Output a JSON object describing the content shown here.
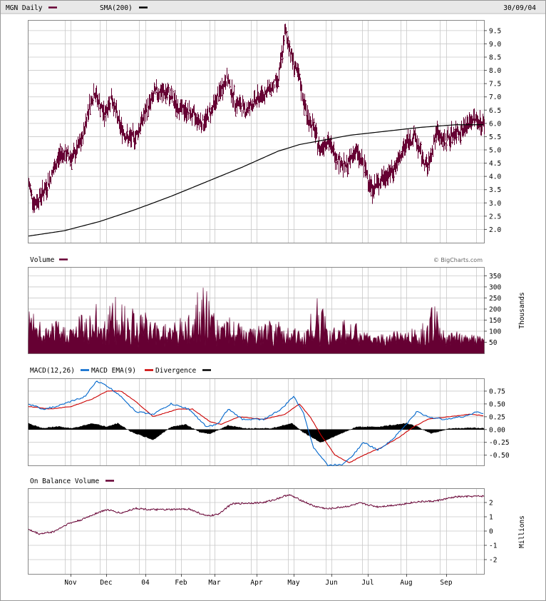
{
  "header": {
    "symbol_label": "MGN Daily",
    "sma_label": "SMA(200)",
    "date": "30/09/04"
  },
  "credit": "© BigCharts.com",
  "colors": {
    "price": "#660033",
    "sma": "#000000",
    "volume": "#660033",
    "macd": "#0066cc",
    "ema": "#cc0000",
    "divergence": "#000000",
    "obv": "#660033",
    "header_bg": "#e8e8e8",
    "grid": "#c8c8c8"
  },
  "x_labels": [
    "Nov",
    "Dec",
    "04",
    "Feb",
    "Mar",
    "Apr",
    "May",
    "Jun",
    "Jul",
    "Aug",
    "Sep"
  ],
  "chart_data": [
    {
      "type": "ohlc",
      "title": "MGN Daily",
      "series": [
        {
          "name": "MGN Daily"
        },
        {
          "name": "SMA(200)"
        }
      ],
      "ylim": [
        1.5,
        9.9
      ],
      "y_ticks": [
        "9.5",
        "9.0",
        "8.5",
        "8.0",
        "7.5",
        "7.0",
        "6.5",
        "6.0",
        "5.5",
        "5.0",
        "4.5",
        "4.0",
        "3.5",
        "3.0",
        "2.5",
        "2.0"
      ],
      "price_keypoints": [
        [
          0,
          3.7
        ],
        [
          8,
          2.95
        ],
        [
          25,
          3.6
        ],
        [
          45,
          4.9
        ],
        [
          62,
          4.7
        ],
        [
          75,
          5.4
        ],
        [
          84,
          6.6
        ],
        [
          92,
          7.2
        ],
        [
          106,
          6.3
        ],
        [
          116,
          7.0
        ],
        [
          128,
          5.9
        ],
        [
          140,
          5.4
        ],
        [
          150,
          5.5
        ],
        [
          162,
          6.3
        ],
        [
          178,
          7.2
        ],
        [
          196,
          7.1
        ],
        [
          210,
          6.6
        ],
        [
          225,
          6.4
        ],
        [
          245,
          6.0
        ],
        [
          258,
          6.6
        ],
        [
          278,
          7.7
        ],
        [
          290,
          6.8
        ],
        [
          305,
          6.5
        ],
        [
          320,
          6.9
        ],
        [
          338,
          7.3
        ],
        [
          350,
          7.6
        ],
        [
          360,
          9.5
        ],
        [
          370,
          8.4
        ],
        [
          380,
          7.6
        ],
        [
          390,
          6.3
        ],
        [
          400,
          5.8
        ],
        [
          408,
          5.0
        ],
        [
          418,
          5.4
        ],
        [
          430,
          4.8
        ],
        [
          445,
          4.3
        ],
        [
          458,
          5.0
        ],
        [
          470,
          4.4
        ],
        [
          482,
          3.5
        ],
        [
          495,
          3.9
        ],
        [
          510,
          4.2
        ],
        [
          520,
          4.6
        ],
        [
          530,
          5.3
        ],
        [
          542,
          5.5
        ],
        [
          550,
          4.8
        ],
        [
          560,
          4.3
        ],
        [
          572,
          5.7
        ],
        [
          582,
          5.3
        ],
        [
          595,
          5.6
        ],
        [
          610,
          5.8
        ],
        [
          625,
          6.2
        ],
        [
          640,
          5.9
        ],
        [
          655,
          6.0
        ],
        [
          668,
          6.1
        ],
        [
          676,
          6.5
        ]
      ],
      "sma_keypoints": [
        [
          0,
          1.75
        ],
        [
          50,
          1.95
        ],
        [
          100,
          2.3
        ],
        [
          150,
          2.75
        ],
        [
          200,
          3.25
        ],
        [
          250,
          3.8
        ],
        [
          300,
          4.35
        ],
        [
          350,
          4.95
        ],
        [
          380,
          5.2
        ],
        [
          410,
          5.35
        ],
        [
          450,
          5.55
        ],
        [
          500,
          5.7
        ],
        [
          550,
          5.85
        ],
        [
          600,
          5.95
        ],
        [
          676,
          5.95
        ]
      ]
    },
    {
      "type": "bar",
      "title": "Volume",
      "unit": "Thousands",
      "ylim": [
        0,
        390
      ],
      "y_ticks": [
        "350",
        "300",
        "250",
        "200",
        "150",
        "100",
        "50"
      ],
      "spike_keypoints": [
        [
          2,
          210
        ],
        [
          22,
          120
        ],
        [
          40,
          150
        ],
        [
          58,
          130
        ],
        [
          80,
          220
        ],
        [
          100,
          230
        ],
        [
          122,
          260
        ],
        [
          135,
          290
        ],
        [
          150,
          250
        ],
        [
          175,
          160
        ],
        [
          210,
          150
        ],
        [
          245,
          320
        ],
        [
          270,
          170
        ],
        [
          288,
          160
        ],
        [
          310,
          110
        ],
        [
          340,
          150
        ],
        [
          366,
          170
        ],
        [
          385,
          80
        ],
        [
          405,
          270
        ],
        [
          420,
          160
        ],
        [
          455,
          150
        ],
        [
          480,
          80
        ],
        [
          500,
          90
        ],
        [
          528,
          110
        ],
        [
          548,
          120
        ],
        [
          570,
          230
        ],
        [
          585,
          80
        ],
        [
          600,
          110
        ],
        [
          640,
          70
        ],
        [
          676,
          120
        ]
      ]
    },
    {
      "type": "line",
      "title": "MACD(12,26)",
      "series": [
        {
          "name": "MACD EMA(9)"
        },
        {
          "name": "Divergence"
        }
      ],
      "ylim": [
        -0.7,
        1.0
      ],
      "y_ticks": [
        "0.75",
        "0.50",
        "0.25",
        "0.00",
        "-0.25",
        "-0.50"
      ],
      "macd_keypoints": [
        [
          0,
          0.5
        ],
        [
          20,
          0.4
        ],
        [
          40,
          0.45
        ],
        [
          60,
          0.55
        ],
        [
          80,
          0.65
        ],
        [
          95,
          0.95
        ],
        [
          110,
          0.85
        ],
        [
          130,
          0.65
        ],
        [
          150,
          0.35
        ],
        [
          175,
          0.3
        ],
        [
          200,
          0.5
        ],
        [
          225,
          0.4
        ],
        [
          250,
          0.05
        ],
        [
          265,
          0.1
        ],
        [
          280,
          0.4
        ],
        [
          300,
          0.2
        ],
        [
          330,
          0.2
        ],
        [
          355,
          0.4
        ],
        [
          372,
          0.65
        ],
        [
          385,
          0.35
        ],
        [
          400,
          -0.35
        ],
        [
          420,
          -0.7
        ],
        [
          440,
          -0.68
        ],
        [
          455,
          -0.5
        ],
        [
          470,
          -0.25
        ],
        [
          490,
          -0.4
        ],
        [
          510,
          -0.2
        ],
        [
          530,
          0.1
        ],
        [
          545,
          0.35
        ],
        [
          560,
          0.25
        ],
        [
          580,
          0.2
        ],
        [
          610,
          0.25
        ],
        [
          630,
          0.35
        ],
        [
          650,
          0.25
        ],
        [
          676,
          0.2
        ]
      ],
      "ema_keypoints": [
        [
          0,
          0.45
        ],
        [
          30,
          0.4
        ],
        [
          60,
          0.45
        ],
        [
          90,
          0.6
        ],
        [
          110,
          0.75
        ],
        [
          130,
          0.75
        ],
        [
          150,
          0.55
        ],
        [
          175,
          0.25
        ],
        [
          210,
          0.4
        ],
        [
          230,
          0.4
        ],
        [
          255,
          0.15
        ],
        [
          270,
          0.1
        ],
        [
          295,
          0.25
        ],
        [
          330,
          0.2
        ],
        [
          360,
          0.3
        ],
        [
          380,
          0.5
        ],
        [
          395,
          0.25
        ],
        [
          410,
          -0.1
        ],
        [
          430,
          -0.5
        ],
        [
          450,
          -0.65
        ],
        [
          470,
          -0.5
        ],
        [
          495,
          -0.35
        ],
        [
          520,
          -0.15
        ],
        [
          540,
          0.05
        ],
        [
          560,
          0.2
        ],
        [
          590,
          0.25
        ],
        [
          620,
          0.3
        ],
        [
          650,
          0.25
        ],
        [
          676,
          0.2
        ]
      ],
      "div_keypoints": [
        [
          0,
          0.12
        ],
        [
          20,
          0.02
        ],
        [
          40,
          0.06
        ],
        [
          60,
          0.02
        ],
        [
          90,
          0.12
        ],
        [
          110,
          0.05
        ],
        [
          125,
          0.12
        ],
        [
          145,
          -0.05
        ],
        [
          175,
          -0.2
        ],
        [
          200,
          0.05
        ],
        [
          220,
          0.1
        ],
        [
          240,
          -0.05
        ],
        [
          255,
          -0.08
        ],
        [
          280,
          0.08
        ],
        [
          305,
          0.02
        ],
        [
          340,
          0.02
        ],
        [
          370,
          0.12
        ],
        [
          385,
          -0.05
        ],
        [
          410,
          -0.25
        ],
        [
          435,
          -0.1
        ],
        [
          460,
          0.05
        ],
        [
          490,
          0.05
        ],
        [
          530,
          0.12
        ],
        [
          545,
          0.06
        ],
        [
          565,
          -0.08
        ],
        [
          590,
          0.02
        ],
        [
          630,
          0.03
        ],
        [
          676,
          0.0
        ]
      ]
    },
    {
      "type": "line",
      "title": "On Balance Volume",
      "unit": "Millions",
      "ylim": [
        -3,
        3
      ],
      "y_ticks": [
        "2",
        "1",
        "0",
        "-1",
        "-2"
      ],
      "obv_keypoints": [
        [
          0,
          0.1
        ],
        [
          15,
          -0.2
        ],
        [
          35,
          -0.05
        ],
        [
          55,
          0.5
        ],
        [
          75,
          0.8
        ],
        [
          95,
          1.25
        ],
        [
          110,
          1.5
        ],
        [
          130,
          1.25
        ],
        [
          150,
          1.6
        ],
        [
          170,
          1.5
        ],
        [
          200,
          1.5
        ],
        [
          225,
          1.55
        ],
        [
          250,
          1.05
        ],
        [
          265,
          1.15
        ],
        [
          285,
          1.9
        ],
        [
          305,
          1.95
        ],
        [
          330,
          2.0
        ],
        [
          345,
          2.2
        ],
        [
          365,
          2.55
        ],
        [
          385,
          2.1
        ],
        [
          400,
          1.75
        ],
        [
          420,
          1.55
        ],
        [
          450,
          1.75
        ],
        [
          465,
          1.95
        ],
        [
          490,
          1.7
        ],
        [
          520,
          1.85
        ],
        [
          545,
          2.05
        ],
        [
          570,
          2.1
        ],
        [
          600,
          2.4
        ],
        [
          640,
          2.45
        ],
        [
          676,
          2.75
        ]
      ]
    }
  ]
}
